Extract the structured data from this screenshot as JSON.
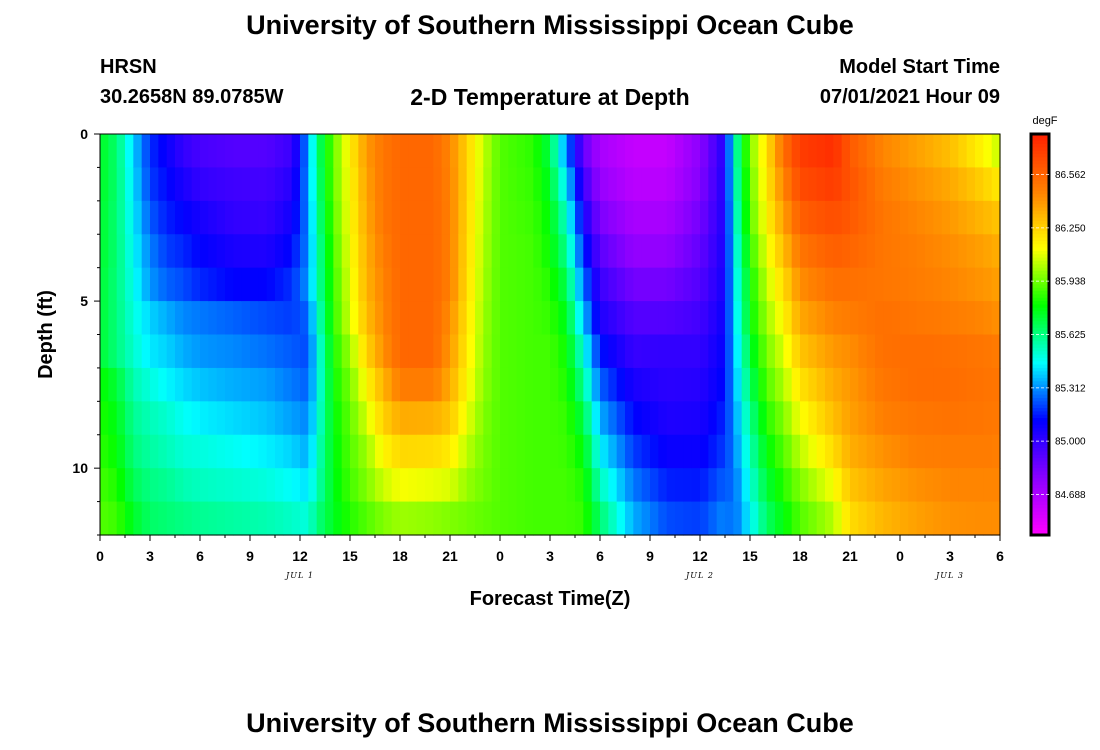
{
  "header": {
    "title": "University of Southern Mississippi Ocean Cube",
    "station": "HRSN",
    "coords": "30.2658N  89.0785W",
    "subtitle": "2-D Temperature at Depth",
    "start_label": "Model Start Time",
    "start_value": "07/01/2021 Hour 09"
  },
  "footer": {
    "title": "University of Southern Mississippi Ocean Cube"
  },
  "chart_data": {
    "type": "heatmap",
    "title": "2-D Temperature at Depth",
    "xlabel": "Forecast Time(Z)",
    "ylabel": "Depth (ft)",
    "x_hours_range": [
      0,
      54
    ],
    "y_depth_range": [
      0,
      12
    ],
    "y_inverted": true,
    "x_tick_labels": [
      "0",
      "3",
      "6",
      "9",
      "12",
      "15",
      "18",
      "21",
      "0",
      "3",
      "6",
      "9",
      "12",
      "15",
      "18",
      "21",
      "0",
      "3",
      "6"
    ],
    "y_tick_labels": [
      "0",
      "5",
      "10"
    ],
    "y_tick_values": [
      0,
      5,
      10
    ],
    "date_labels": [
      {
        "text": "JUL 1",
        "hour": 12
      },
      {
        "text": "JUL 2",
        "hour": 36
      },
      {
        "text": "JUL 3",
        "hour": 51
      }
    ],
    "colorbar": {
      "unit": "degF",
      "min": 84.45,
      "max": 86.8,
      "tick_values": [
        84.688,
        85.0,
        85.312,
        85.625,
        85.938,
        86.25,
        86.562
      ],
      "tick_labels": [
        "84.688",
        "85.000",
        "85.312",
        "85.625",
        "85.938",
        "86.250",
        "86.562"
      ],
      "colors": [
        "#ff00ff",
        "#8a00ff",
        "#0000ff",
        "#00ffff",
        "#00ff00",
        "#ffff00",
        "#ff8000",
        "#ff2000"
      ]
    },
    "depths_ft": [
      0.5,
      1.5,
      2.5,
      3.5,
      4.5,
      5.5,
      6.5,
      7.5,
      8.5,
      9.5,
      10.5,
      11.5
    ],
    "profiles": [
      {
        "hour": 0,
        "t": [
          85.75,
          85.75,
          85.74,
          85.74,
          85.73,
          85.73,
          85.73,
          85.8,
          85.83,
          85.85,
          85.88,
          85.9
        ]
      },
      {
        "hour": 1,
        "t": [
          85.65,
          85.65,
          85.64,
          85.64,
          85.63,
          85.63,
          85.63,
          85.72,
          85.76,
          85.79,
          85.83,
          85.87
        ]
      },
      {
        "hour": 2,
        "t": [
          85.4,
          85.42,
          85.44,
          85.46,
          85.48,
          85.5,
          85.52,
          85.56,
          85.6,
          85.63,
          85.68,
          85.74
        ]
      },
      {
        "hour": 3,
        "t": [
          85.18,
          85.2,
          85.24,
          85.29,
          85.32,
          85.4,
          85.43,
          85.5,
          85.55,
          85.58,
          85.62,
          85.66
        ]
      },
      {
        "hour": 4,
        "t": [
          85.1,
          85.13,
          85.16,
          85.2,
          85.25,
          85.35,
          85.4,
          85.45,
          85.52,
          85.55,
          85.6,
          85.64
        ]
      },
      {
        "hour": 5,
        "t": [
          85.0,
          85.06,
          85.12,
          85.17,
          85.22,
          85.3,
          85.35,
          85.41,
          85.47,
          85.51,
          85.56,
          85.62
        ]
      },
      {
        "hour": 6,
        "t": [
          84.95,
          85.0,
          85.07,
          85.12,
          85.17,
          85.28,
          85.32,
          85.38,
          85.44,
          85.5,
          85.54,
          85.6
        ]
      },
      {
        "hour": 8,
        "t": [
          84.92,
          84.97,
          85.0,
          85.06,
          85.12,
          85.25,
          85.3,
          85.35,
          85.41,
          85.47,
          85.52,
          85.58
        ]
      },
      {
        "hour": 10,
        "t": [
          84.92,
          84.96,
          84.99,
          85.05,
          85.12,
          85.22,
          85.27,
          85.33,
          85.38,
          85.44,
          85.5,
          85.56
        ]
      },
      {
        "hour": 11.5,
        "t": [
          84.98,
          85.03,
          85.08,
          85.13,
          85.18,
          85.2,
          85.24,
          85.28,
          85.33,
          85.4,
          85.46,
          85.53
        ]
      },
      {
        "hour": 12.5,
        "t": [
          85.32,
          85.32,
          85.3,
          85.3,
          85.32,
          85.25,
          85.22,
          85.25,
          85.3,
          85.35,
          85.42,
          85.5
        ]
      },
      {
        "hour": 13,
        "t": [
          85.62,
          85.6,
          85.58,
          85.55,
          85.55,
          85.5,
          85.45,
          85.45,
          85.48,
          85.52,
          85.55,
          85.62
        ]
      },
      {
        "hour": 14,
        "t": [
          85.92,
          85.92,
          85.9,
          85.88,
          85.86,
          85.85,
          85.82,
          85.8,
          85.78,
          85.77,
          85.76,
          85.75
        ]
      },
      {
        "hour": 15,
        "t": [
          86.16,
          86.14,
          86.13,
          86.11,
          86.09,
          86.07,
          86.0,
          85.95,
          85.92,
          85.9,
          85.88,
          85.84
        ]
      },
      {
        "hour": 16,
        "t": [
          86.4,
          86.38,
          86.36,
          86.34,
          86.33,
          86.3,
          86.24,
          86.15,
          86.07,
          86.0,
          85.96,
          85.9
        ]
      },
      {
        "hour": 17,
        "t": [
          86.5,
          86.5,
          86.5,
          86.48,
          86.46,
          86.45,
          86.42,
          86.33,
          86.25,
          86.15,
          86.06,
          85.96
        ]
      },
      {
        "hour": 18,
        "t": [
          86.55,
          86.55,
          86.55,
          86.55,
          86.55,
          86.55,
          86.55,
          86.48,
          86.35,
          86.23,
          86.12,
          86.0
        ]
      },
      {
        "hour": 20,
        "t": [
          86.55,
          86.55,
          86.55,
          86.55,
          86.55,
          86.55,
          86.55,
          86.48,
          86.34,
          86.22,
          86.1,
          85.98
        ]
      },
      {
        "hour": 21,
        "t": [
          86.45,
          86.46,
          86.47,
          86.47,
          86.47,
          86.43,
          86.4,
          86.35,
          86.28,
          86.18,
          86.08,
          85.96
        ]
      },
      {
        "hour": 22,
        "t": [
          86.25,
          86.25,
          86.24,
          86.23,
          86.22,
          86.2,
          86.18,
          86.15,
          86.1,
          86.04,
          85.99,
          85.94
        ]
      },
      {
        "hour": 23,
        "t": [
          86.05,
          86.04,
          86.03,
          86.02,
          86.01,
          86.0,
          85.99,
          85.98,
          85.96,
          85.95,
          85.94,
          85.92
        ]
      },
      {
        "hour": 24,
        "t": [
          85.9,
          85.9,
          85.9,
          85.9,
          85.9,
          85.9,
          85.9,
          85.9,
          85.9,
          85.9,
          85.9,
          85.9
        ]
      },
      {
        "hour": 26,
        "t": [
          85.85,
          85.86,
          85.87,
          85.88,
          85.88,
          85.88,
          85.88,
          85.88,
          85.88,
          85.88,
          85.88,
          85.88
        ]
      },
      {
        "hour": 27,
        "t": [
          85.7,
          85.74,
          85.78,
          85.8,
          85.84,
          85.86,
          85.88,
          85.88,
          85.88,
          85.88,
          85.88,
          85.88
        ]
      },
      {
        "hour": 28,
        "t": [
          85.3,
          85.42,
          85.52,
          85.6,
          85.68,
          85.75,
          85.8,
          85.83,
          85.86,
          85.87,
          85.88,
          85.88
        ]
      },
      {
        "hour": 29,
        "t": [
          84.88,
          84.98,
          85.08,
          85.18,
          85.28,
          85.38,
          85.5,
          85.6,
          85.7,
          85.78,
          85.83,
          85.86
        ]
      },
      {
        "hour": 30,
        "t": [
          84.7,
          84.75,
          84.82,
          84.9,
          84.98,
          85.05,
          85.15,
          85.25,
          85.35,
          85.45,
          85.55,
          85.65
        ]
      },
      {
        "hour": 32,
        "t": [
          84.62,
          84.65,
          84.7,
          84.76,
          84.84,
          84.92,
          84.99,
          85.06,
          85.13,
          85.2,
          85.28,
          85.35
        ]
      },
      {
        "hour": 34,
        "t": [
          84.62,
          84.65,
          84.7,
          84.76,
          84.84,
          84.92,
          85.0,
          85.02,
          85.05,
          85.1,
          85.16,
          85.22
        ]
      },
      {
        "hour": 36,
        "t": [
          84.78,
          84.8,
          84.84,
          84.88,
          84.92,
          84.96,
          85.0,
          85.03,
          85.06,
          85.1,
          85.15,
          85.2
        ]
      },
      {
        "hour": 37.5,
        "t": [
          85.05,
          85.06,
          85.06,
          85.07,
          85.08,
          85.1,
          85.12,
          85.14,
          85.17,
          85.2,
          85.25,
          85.3
        ]
      },
      {
        "hour": 38,
        "t": [
          85.5,
          85.48,
          85.45,
          85.42,
          85.4,
          85.38,
          85.35,
          85.33,
          85.3,
          85.28,
          85.25,
          85.25
        ]
      },
      {
        "hour": 39,
        "t": [
          85.95,
          85.92,
          85.9,
          85.85,
          85.8,
          85.78,
          85.72,
          85.66,
          85.6,
          85.55,
          85.5,
          85.45
        ]
      },
      {
        "hour": 40,
        "t": [
          86.2,
          86.18,
          86.15,
          86.1,
          86.05,
          86.0,
          85.95,
          85.9,
          85.84,
          85.78,
          85.72,
          85.66
        ]
      },
      {
        "hour": 41,
        "t": [
          86.52,
          86.45,
          86.38,
          86.3,
          86.22,
          86.15,
          86.08,
          86.02,
          85.96,
          85.9,
          85.84,
          85.78
        ]
      },
      {
        "hour": 42,
        "t": [
          86.7,
          86.65,
          86.58,
          86.5,
          86.43,
          86.36,
          86.28,
          86.2,
          86.12,
          86.04,
          85.96,
          85.9
        ]
      },
      {
        "hour": 44,
        "t": [
          86.75,
          86.7,
          86.64,
          86.58,
          86.52,
          86.46,
          86.4,
          86.35,
          86.3,
          86.22,
          86.12,
          86.03
        ]
      },
      {
        "hour": 45,
        "t": [
          86.6,
          86.62,
          86.6,
          86.56,
          86.52,
          86.48,
          86.43,
          86.4,
          86.38,
          86.34,
          86.28,
          86.22
        ]
      },
      {
        "hour": 47,
        "t": [
          86.45,
          86.48,
          86.5,
          86.5,
          86.5,
          86.52,
          86.52,
          86.5,
          86.47,
          86.42,
          86.37,
          86.32
        ]
      },
      {
        "hour": 49,
        "t": [
          86.38,
          86.42,
          86.45,
          86.47,
          86.48,
          86.5,
          86.53,
          86.53,
          86.5,
          86.47,
          86.42,
          86.38
        ]
      },
      {
        "hour": 51,
        "t": [
          86.3,
          86.36,
          86.4,
          86.43,
          86.45,
          86.48,
          86.52,
          86.53,
          86.51,
          86.48,
          86.45,
          86.42
        ]
      },
      {
        "hour": 53,
        "t": [
          86.15,
          86.25,
          86.32,
          86.38,
          86.41,
          86.45,
          86.5,
          86.51,
          86.5,
          86.48,
          86.45,
          86.43
        ]
      },
      {
        "hour": 54,
        "t": [
          86.05,
          86.18,
          86.28,
          86.34,
          86.38,
          86.42,
          86.48,
          86.5,
          86.49,
          86.47,
          86.45,
          86.43
        ]
      }
    ]
  }
}
